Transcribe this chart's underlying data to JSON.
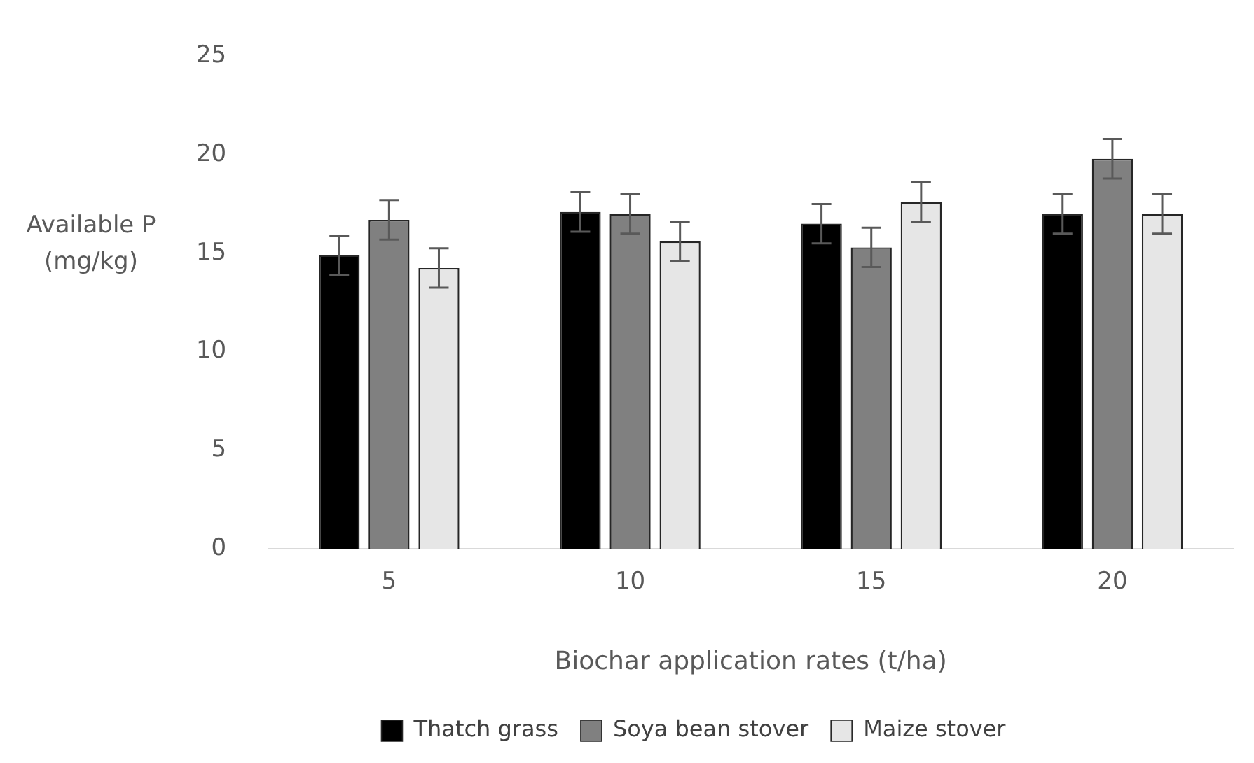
{
  "chart_data": {
    "type": "bar",
    "xlabel": "Biochar application rates (t/ha)",
    "ylabel": "Available P (mg/kg)",
    "categories": [
      "5",
      "10",
      "15",
      "20"
    ],
    "series": [
      {
        "name": "Thatch grass",
        "color": "#000000",
        "values": [
          14.9,
          17.1,
          16.5,
          17.0
        ],
        "errors": [
          1,
          1,
          1,
          1
        ]
      },
      {
        "name": "Soya bean stover",
        "color": "#808080",
        "values": [
          16.7,
          17.0,
          15.3,
          19.8
        ],
        "errors": [
          1,
          1,
          1,
          1
        ]
      },
      {
        "name": "Maize stover",
        "color": "#e6e6e6",
        "values": [
          14.25,
          15.6,
          17.6,
          17.0
        ],
        "errors": [
          1,
          1,
          1,
          1
        ]
      }
    ],
    "ylim": [
      0,
      25
    ],
    "yticks": [
      0,
      5,
      10,
      15,
      20,
      25
    ],
    "grid": false,
    "legend": "bottom"
  }
}
